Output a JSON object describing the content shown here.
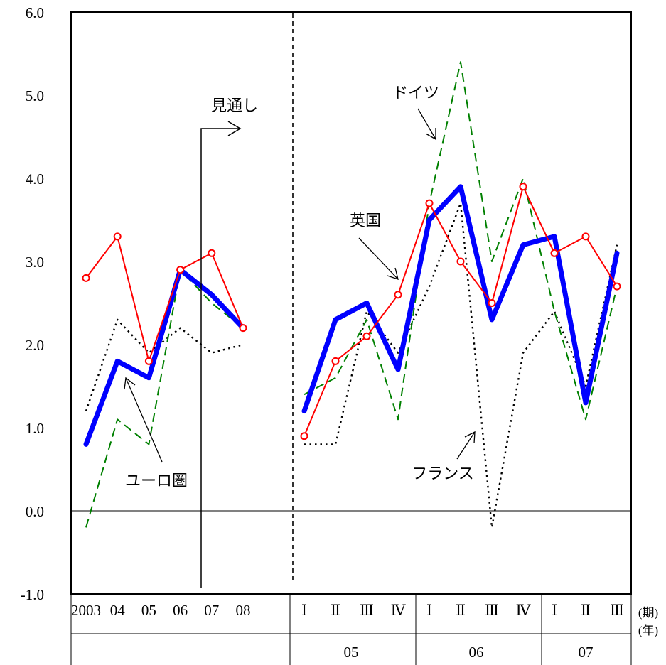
{
  "chart_data": {
    "type": "line",
    "ylim": [
      -1.0,
      6.0
    ],
    "y_tick_labels": [
      "6.0",
      "5.0",
      "4.0",
      "3.0",
      "2.0",
      "1.0",
      "0.0",
      "-1.0"
    ],
    "grid": false,
    "zero_line": true,
    "annual_categories": [
      "2003",
      "04",
      "05",
      "06",
      "07",
      "08"
    ],
    "quarter_categories": [
      "Ⅰ",
      "Ⅱ",
      "Ⅲ",
      "Ⅳ",
      "Ⅰ",
      "Ⅱ",
      "Ⅲ",
      "Ⅳ",
      "Ⅰ",
      "Ⅱ",
      "Ⅲ"
    ],
    "quarter_years": [
      {
        "label": "05",
        "quarters": 4
      },
      {
        "label": "06",
        "quarters": 4
      },
      {
        "label": "07",
        "quarters": 3
      }
    ],
    "quarter_unit_label": "(期)",
    "year_unit_label": "(年)",
    "forecast_label": "見通し",
    "series": [
      {
        "name": "ユーロ圏",
        "color": "#0000ff",
        "line_style": "solid",
        "heavy": true,
        "markers": false,
        "annual": [
          0.8,
          1.8,
          1.6,
          2.9,
          2.6,
          2.2
        ],
        "quarterly": [
          1.2,
          2.3,
          2.5,
          1.7,
          3.5,
          3.9,
          2.3,
          3.2,
          3.3,
          1.3,
          3.1
        ]
      },
      {
        "name": "英国",
        "color": "#ff0000",
        "line_style": "solid",
        "heavy": false,
        "markers": true,
        "annual": [
          2.8,
          3.3,
          1.8,
          2.9,
          3.1,
          2.2
        ],
        "quarterly": [
          0.9,
          1.8,
          2.1,
          2.6,
          3.7,
          3.0,
          2.5,
          3.9,
          3.1,
          3.3,
          2.7
        ]
      },
      {
        "name": "ドイツ",
        "color": "#008000",
        "line_style": "dashed",
        "heavy": false,
        "markers": false,
        "annual": [
          -0.2,
          1.1,
          0.8,
          2.9,
          2.5,
          2.2
        ],
        "quarterly": [
          1.4,
          1.6,
          2.3,
          1.1,
          3.7,
          5.4,
          3.0,
          4.0,
          2.4,
          1.1,
          2.7
        ]
      },
      {
        "name": "フランス",
        "color": "#000000",
        "line_style": "dotted",
        "heavy": false,
        "markers": false,
        "annual": [
          1.2,
          2.3,
          1.9,
          2.2,
          1.9,
          2.0
        ],
        "quarterly": [
          0.8,
          0.8,
          2.4,
          1.9,
          2.7,
          3.7,
          -0.2,
          1.9,
          2.4,
          1.5,
          3.2
        ]
      }
    ]
  }
}
